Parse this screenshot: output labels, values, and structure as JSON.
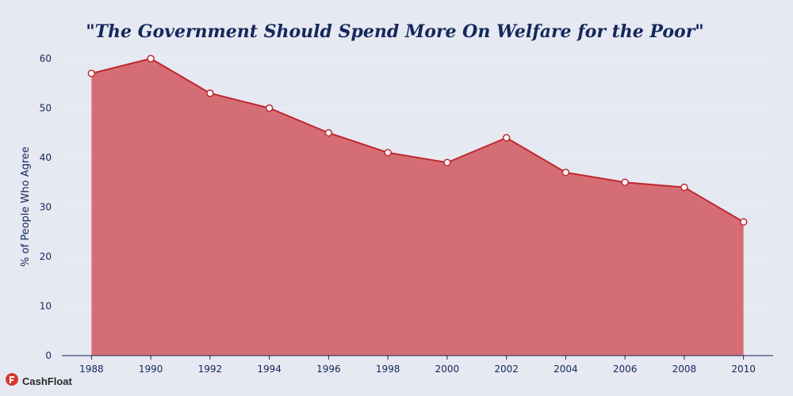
{
  "chart_data": {
    "type": "area",
    "title": "\"The Government Should Spend More On Welfare for the Poor\"",
    "xlabel": "",
    "ylabel": "% of People Who Agree",
    "x": [
      1988,
      1990,
      1992,
      1994,
      1996,
      1998,
      2000,
      2002,
      2004,
      2006,
      2008,
      2010
    ],
    "series": [
      {
        "values": [
          57,
          60,
          53,
          50,
          45,
          41,
          39,
          44,
          37,
          35,
          34,
          27
        ]
      }
    ],
    "xticks": [
      "1988",
      "1990",
      "1992",
      "1994",
      "1996",
      "1998",
      "2000",
      "2002",
      "2004",
      "2006",
      "2008",
      "2010"
    ],
    "yticks": [
      "0",
      "10",
      "20",
      "30",
      "40",
      "50",
      "60"
    ],
    "ylim": [
      0,
      60
    ],
    "grid": true,
    "colors": {
      "fill": "#d56e74",
      "line": "#c0282f",
      "marker_fill": "#ffffff",
      "text": "#14285a"
    }
  },
  "logo": {
    "text": "CashFloat",
    "icon": "cashfloat-logo-icon"
  }
}
